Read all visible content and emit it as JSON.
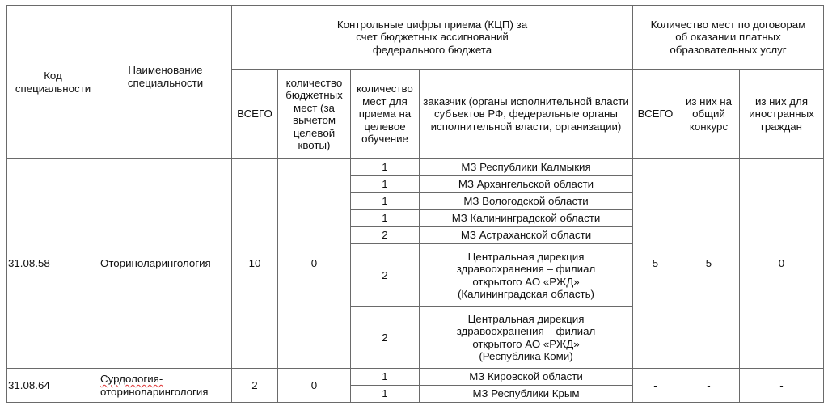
{
  "header": {
    "code": "Код специальности",
    "name": "Наименование специальности",
    "kcp_group": "Контрольные цифры приема (КЦП) за счет бюджетных ассигнований федерального бюджета",
    "paid_group": "Количество мест по договорам об оказании платных образовательных услуг",
    "kcp_total": "ВСЕГО",
    "kcp_budget": "количество бюджетных мест (за вычетом целевой квоты)",
    "kcp_target": "количество мест для приема на целевое обучение",
    "kcp_customer": "заказчик (органы исполнительной власти субъектов РФ, федеральные органы исполнительной власти, организации)",
    "paid_total": "ВСЕГО",
    "paid_general": "из них на общий конкурс",
    "paid_foreign": "из них для иностранных граждан"
  },
  "rows": [
    {
      "code": "31.08.58",
      "name": "Оториноларингология",
      "total": "10",
      "budget": "0",
      "paid_total": "5",
      "paid_general": "5",
      "paid_foreign": "0",
      "targets": [
        {
          "count": "1",
          "customer": "МЗ Республики Калмыкия"
        },
        {
          "count": "1",
          "customer": "МЗ Архангельской области"
        },
        {
          "count": "1",
          "customer": "МЗ Вологодской области"
        },
        {
          "count": "1",
          "customer": "МЗ Калининградской области"
        },
        {
          "count": "2",
          "customer": "МЗ Астраханской области"
        },
        {
          "count": "2",
          "customer": "Центральная дирекция здравоохранения – филиал открытого АО «РЖД» (Калининградская область)"
        },
        {
          "count": "2",
          "customer": "Центральная дирекция здравоохранения – филиал открытого АО «РЖД» (Республика Коми)"
        }
      ]
    },
    {
      "code": "31.08.64",
      "name_part1": "Сурдология-",
      "name_part2": "оториноларингология",
      "total": "2",
      "budget": "0",
      "paid_total": "-",
      "paid_general": "-",
      "paid_foreign": "-",
      "targets": [
        {
          "count": "1",
          "customer": "МЗ Кировской области"
        },
        {
          "count": "1",
          "customer": "МЗ Республики Крым"
        }
      ]
    }
  ]
}
